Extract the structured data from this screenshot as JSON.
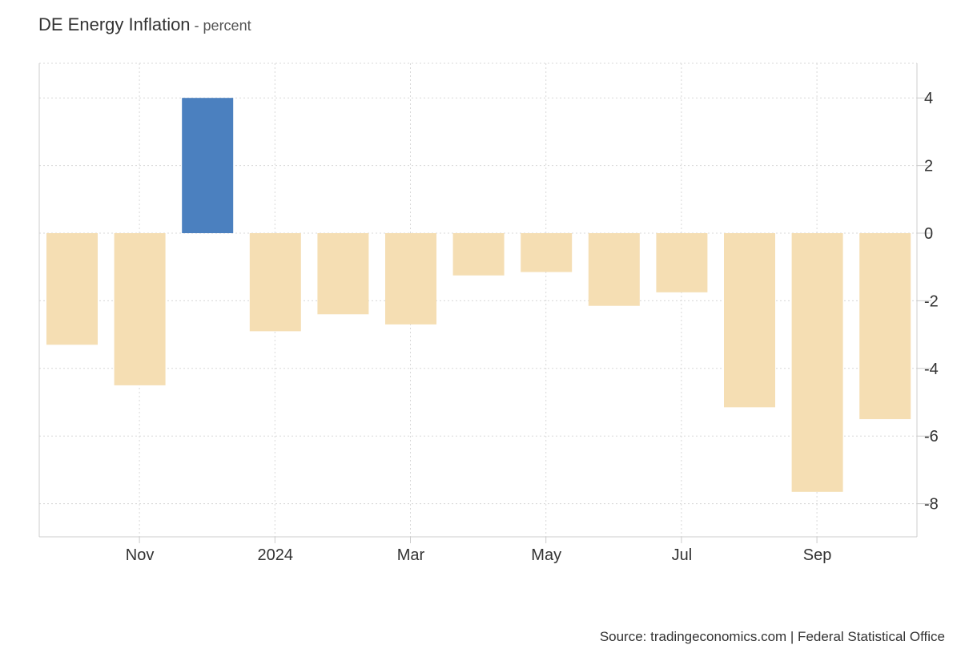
{
  "title": {
    "main": "DE Energy Inflation",
    "sub": " - percent"
  },
  "source": "Source: tradingeconomics.com | Federal Statistical Office",
  "colors": {
    "positive": "#4b80bf",
    "negative": "#f5deb3",
    "grid": "#d8d8d8",
    "axis": "#cccccc",
    "text": "#333333"
  },
  "chart_data": {
    "type": "bar",
    "categories": [
      "2023-10",
      "2023-11",
      "2023-12",
      "2024-01",
      "2024-02",
      "2024-03",
      "2024-04",
      "2024-05",
      "2024-06",
      "2024-07",
      "2024-08",
      "2024-09",
      "2024-10"
    ],
    "values": [
      -3.3,
      -4.5,
      4.0,
      -2.9,
      -2.4,
      -2.7,
      -1.25,
      -1.15,
      -2.15,
      -1.75,
      -5.15,
      -7.65,
      -5.5
    ],
    "title": "DE Energy Inflation",
    "unit": "percent",
    "ylim": [
      -9,
      5
    ],
    "yticks": [
      4,
      2,
      0,
      -2,
      -4,
      -6,
      -8
    ],
    "ytick_labels": [
      "4",
      "2",
      "0",
      "-2",
      "-4",
      "-6",
      "-8"
    ],
    "xtick_labels": [
      "Nov",
      "2024",
      "Mar",
      "May",
      "Jul",
      "Sep"
    ],
    "y_axis_position": "right",
    "grid": true
  }
}
